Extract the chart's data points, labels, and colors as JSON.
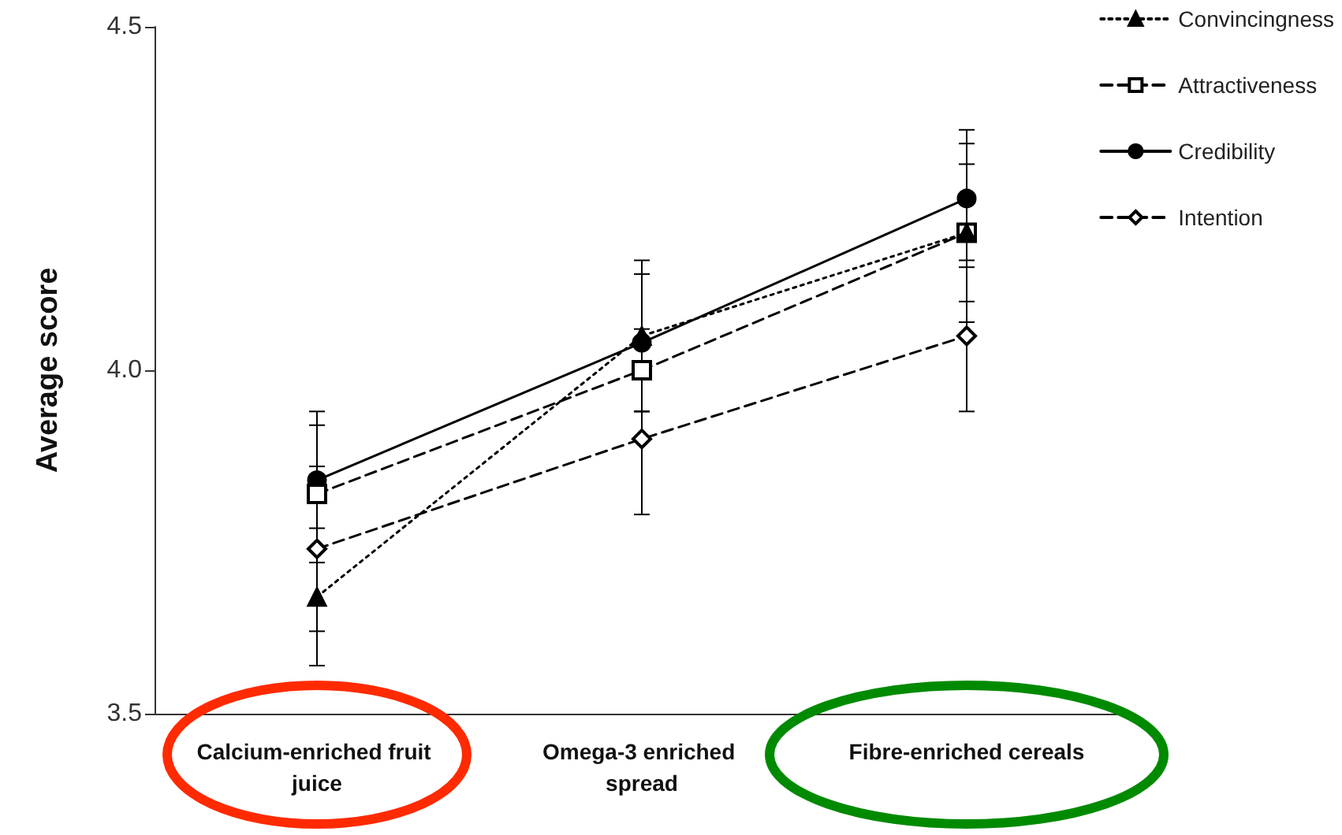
{
  "chart_data": {
    "type": "line",
    "ylabel": "Average score",
    "categories": [
      "Calcium-enriched fruit juice",
      "Omega-3 enriched spread",
      "Fibre-enriched cereals"
    ],
    "ylim": [
      3.5,
      4.5
    ],
    "yticks": [
      {
        "value": 3.5,
        "label": "3.5"
      },
      {
        "value": 4.0,
        "label": "4.0"
      },
      {
        "value": 4.5,
        "label": "4.5"
      }
    ],
    "grid": false,
    "legend": "top right",
    "series": [
      {
        "name": "Convincingness",
        "color": "#000000",
        "marker": "triangle",
        "line_style": "dotted",
        "values": [
          3.67,
          4.05,
          4.2
        ],
        "errors": [
          0.1,
          0.11,
          0.13
        ]
      },
      {
        "name": "Attractiveness",
        "color": "#000000",
        "marker": "square",
        "line_style": "dashed",
        "values": [
          3.82,
          4.0,
          4.2
        ],
        "errors": [
          0.1,
          0.06,
          0.1
        ]
      },
      {
        "name": "Credibility",
        "color": "#000000",
        "marker": "circle",
        "line_style": "solid",
        "values": [
          3.84,
          4.04,
          4.25
        ],
        "errors": [
          0.1,
          0.1,
          0.1
        ]
      },
      {
        "name": "Intention",
        "color": "#000000",
        "marker": "diamond",
        "line_style": "dashed",
        "values": [
          3.74,
          3.9,
          4.05
        ],
        "errors": [
          0.12,
          0.11,
          0.11
        ]
      }
    ]
  }
}
